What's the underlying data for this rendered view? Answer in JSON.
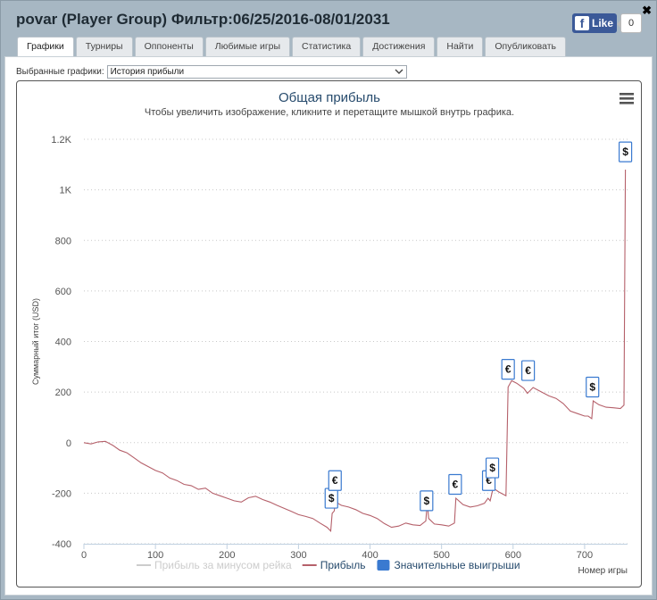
{
  "window": {
    "title": "povar (Player Group) Фильтр:06/25/2016-08/01/2031",
    "close_glyph": "✖"
  },
  "facebook": {
    "like_label": "Like",
    "count": "0",
    "logo_glyph": "f"
  },
  "tabs": [
    {
      "label": "Графики",
      "active": true
    },
    {
      "label": "Турниры",
      "active": false
    },
    {
      "label": "Оппоненты",
      "active": false
    },
    {
      "label": "Любимые игры",
      "active": false
    },
    {
      "label": "Статистика",
      "active": false
    },
    {
      "label": "Достижения",
      "active": false
    },
    {
      "label": "Найти",
      "active": false
    },
    {
      "label": "Опубликовать",
      "active": false
    }
  ],
  "selector": {
    "label": "Выбранные графики:",
    "value": "История прибыли"
  },
  "chart_data": {
    "type": "line",
    "title": "Общая прибыль",
    "subtitle": "Чтобы увеличить изображение, кликните и перетащите мышкой внутрь графика.",
    "xlabel": "Номер игры",
    "ylabel": "Суммарный итог (USD)",
    "xlim": [
      0,
      760
    ],
    "ylim": [
      -400,
      1200
    ],
    "x_ticks": [
      0,
      100,
      200,
      300,
      400,
      500,
      600,
      700
    ],
    "y_ticks": [
      -400,
      -200,
      0,
      200,
      400,
      600,
      800,
      "1K",
      "1.2K"
    ],
    "y_tick_values": [
      -400,
      -200,
      0,
      200,
      400,
      600,
      800,
      1000,
      1200
    ],
    "grid": "horizontal dotted",
    "legend_position": "bottom",
    "legend": [
      {
        "name": "Прибыль за минусом рейка",
        "color": "#cccccc",
        "kind": "line",
        "disabled": true
      },
      {
        "name": "Прибыль",
        "color": "#b5606a",
        "kind": "line",
        "disabled": false
      },
      {
        "name": "Значительные выигрыши",
        "color": "#3a7ad0",
        "kind": "box",
        "disabled": false
      }
    ],
    "series": [
      {
        "name": "Прибыль",
        "color": "#b5606a",
        "points": [
          [
            0,
            0
          ],
          [
            10,
            -5
          ],
          [
            20,
            3
          ],
          [
            30,
            5
          ],
          [
            40,
            -10
          ],
          [
            50,
            -30
          ],
          [
            60,
            -40
          ],
          [
            70,
            -60
          ],
          [
            80,
            -80
          ],
          [
            90,
            -95
          ],
          [
            100,
            -110
          ],
          [
            110,
            -120
          ],
          [
            120,
            -140
          ],
          [
            130,
            -150
          ],
          [
            140,
            -165
          ],
          [
            150,
            -170
          ],
          [
            160,
            -185
          ],
          [
            170,
            -180
          ],
          [
            180,
            -200
          ],
          [
            190,
            -210
          ],
          [
            200,
            -220
          ],
          [
            210,
            -230
          ],
          [
            220,
            -235
          ],
          [
            230,
            -218
          ],
          [
            240,
            -212
          ],
          [
            250,
            -225
          ],
          [
            260,
            -235
          ],
          [
            270,
            -248
          ],
          [
            280,
            -260
          ],
          [
            290,
            -272
          ],
          [
            300,
            -285
          ],
          [
            310,
            -292
          ],
          [
            320,
            -300
          ],
          [
            330,
            -318
          ],
          [
            340,
            -335
          ],
          [
            345,
            -350
          ],
          [
            347,
            -280
          ],
          [
            350,
            -270
          ],
          [
            352,
            -200
          ],
          [
            355,
            -240
          ],
          [
            360,
            -248
          ],
          [
            370,
            -255
          ],
          [
            380,
            -265
          ],
          [
            390,
            -280
          ],
          [
            400,
            -288
          ],
          [
            410,
            -300
          ],
          [
            420,
            -320
          ],
          [
            430,
            -335
          ],
          [
            440,
            -330
          ],
          [
            450,
            -318
          ],
          [
            460,
            -325
          ],
          [
            470,
            -328
          ],
          [
            478,
            -310
          ],
          [
            480,
            -238
          ],
          [
            482,
            -300
          ],
          [
            490,
            -322
          ],
          [
            500,
            -325
          ],
          [
            510,
            -330
          ],
          [
            518,
            -318
          ],
          [
            520,
            -220
          ],
          [
            530,
            -245
          ],
          [
            540,
            -255
          ],
          [
            550,
            -250
          ],
          [
            560,
            -240
          ],
          [
            565,
            -220
          ],
          [
            568,
            -230
          ],
          [
            572,
            -180
          ],
          [
            580,
            -195
          ],
          [
            590,
            -210
          ],
          [
            593,
            220
          ],
          [
            598,
            245
          ],
          [
            605,
            235
          ],
          [
            615,
            215
          ],
          [
            620,
            195
          ],
          [
            628,
            218
          ],
          [
            640,
            200
          ],
          [
            650,
            185
          ],
          [
            660,
            175
          ],
          [
            670,
            155
          ],
          [
            680,
            125
          ],
          [
            690,
            115
          ],
          [
            700,
            105
          ],
          [
            705,
            105
          ],
          [
            710,
            95
          ],
          [
            712,
            165
          ],
          [
            720,
            150
          ],
          [
            730,
            140
          ],
          [
            740,
            138
          ],
          [
            750,
            135
          ],
          [
            755,
            148
          ],
          [
            757,
            1080
          ]
        ]
      }
    ],
    "significant_wins": [
      {
        "x": 346,
        "y": -220,
        "label": "$"
      },
      {
        "x": 351,
        "y": -150,
        "label": "€"
      },
      {
        "x": 479,
        "y": -230,
        "label": "$"
      },
      {
        "x": 519,
        "y": -165,
        "label": "€"
      },
      {
        "x": 566,
        "y": -150,
        "label": "€"
      },
      {
        "x": 571,
        "y": -100,
        "label": "$"
      },
      {
        "x": 593,
        "y": 290,
        "label": "€"
      },
      {
        "x": 621,
        "y": 285,
        "label": "€"
      },
      {
        "x": 711,
        "y": 220,
        "label": "$"
      },
      {
        "x": 757,
        "y": 1150,
        "label": "$"
      }
    ],
    "win_box_color": "#3a7ad0"
  }
}
